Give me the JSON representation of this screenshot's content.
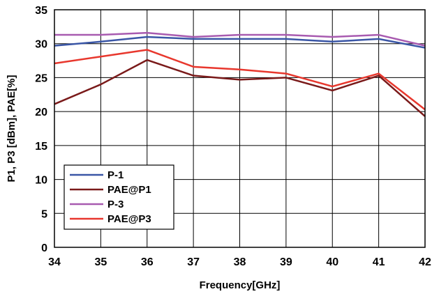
{
  "chart_data": {
    "type": "line",
    "xlabel": "Frequency[GHz]",
    "ylabel": "P1, P3 [dBm], PAE[%]",
    "x": [
      34,
      35,
      36,
      37,
      38,
      39,
      40,
      41,
      42
    ],
    "xlim": [
      34,
      42
    ],
    "ylim": [
      0,
      35
    ],
    "xticks": [
      "34",
      "35",
      "36",
      "37",
      "38",
      "39",
      "40",
      "41",
      "42"
    ],
    "yticks": [
      "0",
      "5",
      "10",
      "15",
      "20",
      "25",
      "30",
      "35"
    ],
    "grid": true,
    "legend_position": "bottom-left",
    "series": [
      {
        "name": "P-1",
        "color": "#3a56a6",
        "values": [
          29.7,
          30.3,
          31.0,
          30.7,
          30.7,
          30.7,
          30.3,
          30.7,
          29.4
        ]
      },
      {
        "name": "PAE@P1",
        "color": "#7a1a1a",
        "values": [
          21.1,
          24.0,
          27.6,
          25.3,
          24.7,
          25.0,
          23.1,
          25.3,
          19.3
        ]
      },
      {
        "name": "P-3",
        "color": "#a85bb0",
        "values": [
          31.3,
          31.3,
          31.6,
          31.0,
          31.3,
          31.3,
          31.0,
          31.3,
          29.7
        ]
      },
      {
        "name": "PAE@P3",
        "color": "#e8372d",
        "values": [
          27.1,
          28.1,
          29.1,
          26.6,
          26.2,
          25.6,
          23.7,
          25.6,
          20.3
        ]
      }
    ]
  }
}
